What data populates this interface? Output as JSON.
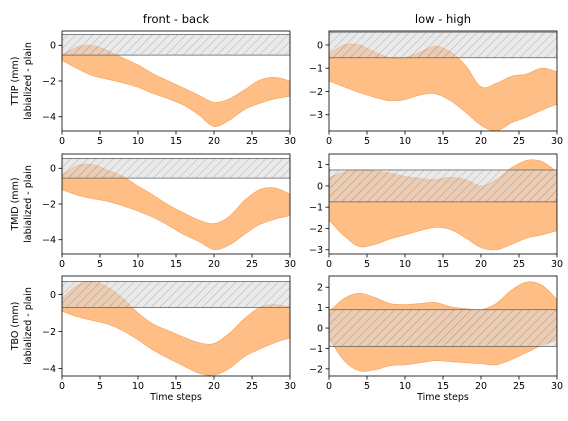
{
  "colors": {
    "band_fill": "#ffbe86",
    "band_edge": "#f5a05a",
    "hatch_fill": "#d9d9d9",
    "hatch_line": "#7a7a7a",
    "frame": "#000000"
  },
  "chart_data": [
    {
      "type": "area",
      "title": "front - back",
      "ylabel_lines": [
        "TTIP (mm)",
        "labialized - plain"
      ],
      "xlabel": "",
      "xlim": [
        0,
        30
      ],
      "ylim": [
        -4.8,
        0.8
      ],
      "xticks": [
        0,
        5,
        10,
        15,
        20,
        25,
        30
      ],
      "yticks": [
        0,
        -2,
        -4
      ],
      "x": [
        0,
        2,
        4,
        6,
        8,
        10,
        12,
        14,
        16,
        18,
        20,
        22,
        24,
        26,
        28,
        30
      ],
      "upper": [
        -0.55,
        -0.1,
        0.0,
        -0.3,
        -0.7,
        -1.1,
        -1.6,
        -2.0,
        -2.4,
        -2.8,
        -3.2,
        -3.0,
        -2.5,
        -1.95,
        -1.8,
        -2.0
      ],
      "lower": [
        -0.85,
        -1.3,
        -1.7,
        -1.9,
        -2.1,
        -2.35,
        -2.7,
        -3.0,
        -3.35,
        -3.9,
        -4.55,
        -4.2,
        -3.6,
        -3.25,
        -3.0,
        -2.85
      ],
      "hatch_band": [
        -0.55,
        0.6
      ]
    },
    {
      "type": "area",
      "title": "low - high",
      "ylabel_lines": [],
      "xlabel": "",
      "xlim": [
        0,
        30
      ],
      "ylim": [
        -3.7,
        0.6
      ],
      "xticks": [
        0,
        5,
        10,
        15,
        20,
        25,
        30
      ],
      "yticks": [
        0,
        -1,
        -2,
        -3
      ],
      "x": [
        0,
        2,
        4,
        6,
        8,
        10,
        12,
        14,
        16,
        18,
        20,
        22,
        24,
        26,
        28,
        30
      ],
      "upper": [
        -0.4,
        0.0,
        0.0,
        -0.3,
        -0.55,
        -0.55,
        -0.3,
        -0.05,
        -0.3,
        -0.9,
        -1.8,
        -1.65,
        -1.35,
        -1.25,
        -1.0,
        -1.15
      ],
      "lower": [
        -1.55,
        -1.8,
        -2.05,
        -2.25,
        -2.4,
        -2.35,
        -2.15,
        -2.1,
        -2.4,
        -2.9,
        -3.45,
        -3.7,
        -3.35,
        -3.1,
        -2.8,
        -2.55
      ],
      "hatch_band": [
        -0.55,
        0.55
      ]
    },
    {
      "type": "area",
      "title": "",
      "ylabel_lines": [
        "TMID (mm)",
        "labialized - plain"
      ],
      "xlabel": "",
      "xlim": [
        0,
        30
      ],
      "ylim": [
        -4.8,
        0.8
      ],
      "xticks": [
        0,
        5,
        10,
        15,
        20,
        25,
        30
      ],
      "yticks": [
        0,
        -2,
        -4
      ],
      "x": [
        0,
        2,
        4,
        6,
        8,
        10,
        12,
        14,
        16,
        18,
        20,
        22,
        24,
        26,
        28,
        30
      ],
      "upper": [
        -0.4,
        0.15,
        0.2,
        -0.1,
        -0.45,
        -1.0,
        -1.5,
        -2.05,
        -2.5,
        -2.9,
        -3.1,
        -2.7,
        -1.8,
        -1.2,
        -1.1,
        -1.45
      ],
      "lower": [
        -1.2,
        -1.5,
        -1.7,
        -1.85,
        -2.1,
        -2.4,
        -2.75,
        -3.2,
        -3.7,
        -4.1,
        -4.55,
        -4.3,
        -3.7,
        -3.15,
        -2.85,
        -2.65
      ],
      "hatch_band": [
        -0.55,
        0.55
      ]
    },
    {
      "type": "area",
      "title": "",
      "ylabel_lines": [],
      "xlabel": "",
      "xlim": [
        0,
        30
      ],
      "ylim": [
        -3.2,
        1.5
      ],
      "xticks": [
        0,
        5,
        10,
        15,
        20,
        25,
        30
      ],
      "yticks": [
        1,
        0,
        -1,
        -2,
        -3
      ],
      "x": [
        0,
        2,
        4,
        6,
        8,
        10,
        12,
        14,
        16,
        18,
        20,
        22,
        24,
        26,
        28,
        30
      ],
      "upper": [
        0.4,
        0.65,
        0.75,
        0.7,
        0.6,
        0.45,
        0.35,
        0.3,
        0.4,
        0.3,
        0.0,
        0.3,
        0.85,
        1.2,
        1.15,
        0.65
      ],
      "lower": [
        -1.6,
        -2.35,
        -2.85,
        -2.75,
        -2.5,
        -2.3,
        -2.1,
        -1.95,
        -2.05,
        -2.45,
        -2.9,
        -3.0,
        -2.75,
        -2.45,
        -2.3,
        -2.1
      ],
      "hatch_band": [
        -0.75,
        0.75
      ]
    },
    {
      "type": "area",
      "title": "",
      "ylabel_lines": [
        "TBO (mm)",
        "labialized - plain"
      ],
      "xlabel": "Time steps",
      "xlim": [
        0,
        30
      ],
      "ylim": [
        -4.4,
        1.0
      ],
      "xticks": [
        0,
        5,
        10,
        15,
        20,
        25,
        30
      ],
      "yticks": [
        0,
        -2,
        -4
      ],
      "x": [
        0,
        2,
        4,
        6,
        8,
        10,
        12,
        14,
        16,
        18,
        20,
        22,
        24,
        26,
        28,
        30
      ],
      "upper": [
        -0.2,
        0.5,
        0.7,
        0.4,
        -0.2,
        -1.0,
        -1.6,
        -1.95,
        -2.3,
        -2.6,
        -2.65,
        -2.1,
        -1.3,
        -0.7,
        -0.55,
        -0.7
      ],
      "lower": [
        -0.9,
        -1.2,
        -1.4,
        -1.6,
        -1.95,
        -2.45,
        -3.0,
        -3.45,
        -3.85,
        -4.25,
        -4.35,
        -4.0,
        -3.35,
        -2.95,
        -2.6,
        -2.35
      ],
      "hatch_band": [
        -0.7,
        0.7
      ]
    },
    {
      "type": "area",
      "title": "",
      "ylabel_lines": [],
      "xlabel": "Time steps",
      "xlim": [
        0,
        30
      ],
      "ylim": [
        -2.35,
        2.55
      ],
      "xticks": [
        0,
        5,
        10,
        15,
        20,
        25,
        30
      ],
      "yticks": [
        2,
        1,
        0,
        -1,
        -2
      ],
      "x": [
        0,
        2,
        4,
        6,
        8,
        10,
        12,
        14,
        16,
        18,
        20,
        22,
        24,
        26,
        28,
        30
      ],
      "upper": [
        0.8,
        1.45,
        1.7,
        1.5,
        1.2,
        1.15,
        1.2,
        1.25,
        1.05,
        0.95,
        0.9,
        1.2,
        1.85,
        2.25,
        2.1,
        1.4
      ],
      "lower": [
        -0.5,
        -1.6,
        -2.1,
        -2.05,
        -1.85,
        -1.8,
        -1.7,
        -1.6,
        -1.65,
        -1.7,
        -1.75,
        -1.8,
        -1.55,
        -1.2,
        -0.85,
        -0.6
      ],
      "hatch_band": [
        -0.9,
        0.9
      ]
    }
  ]
}
